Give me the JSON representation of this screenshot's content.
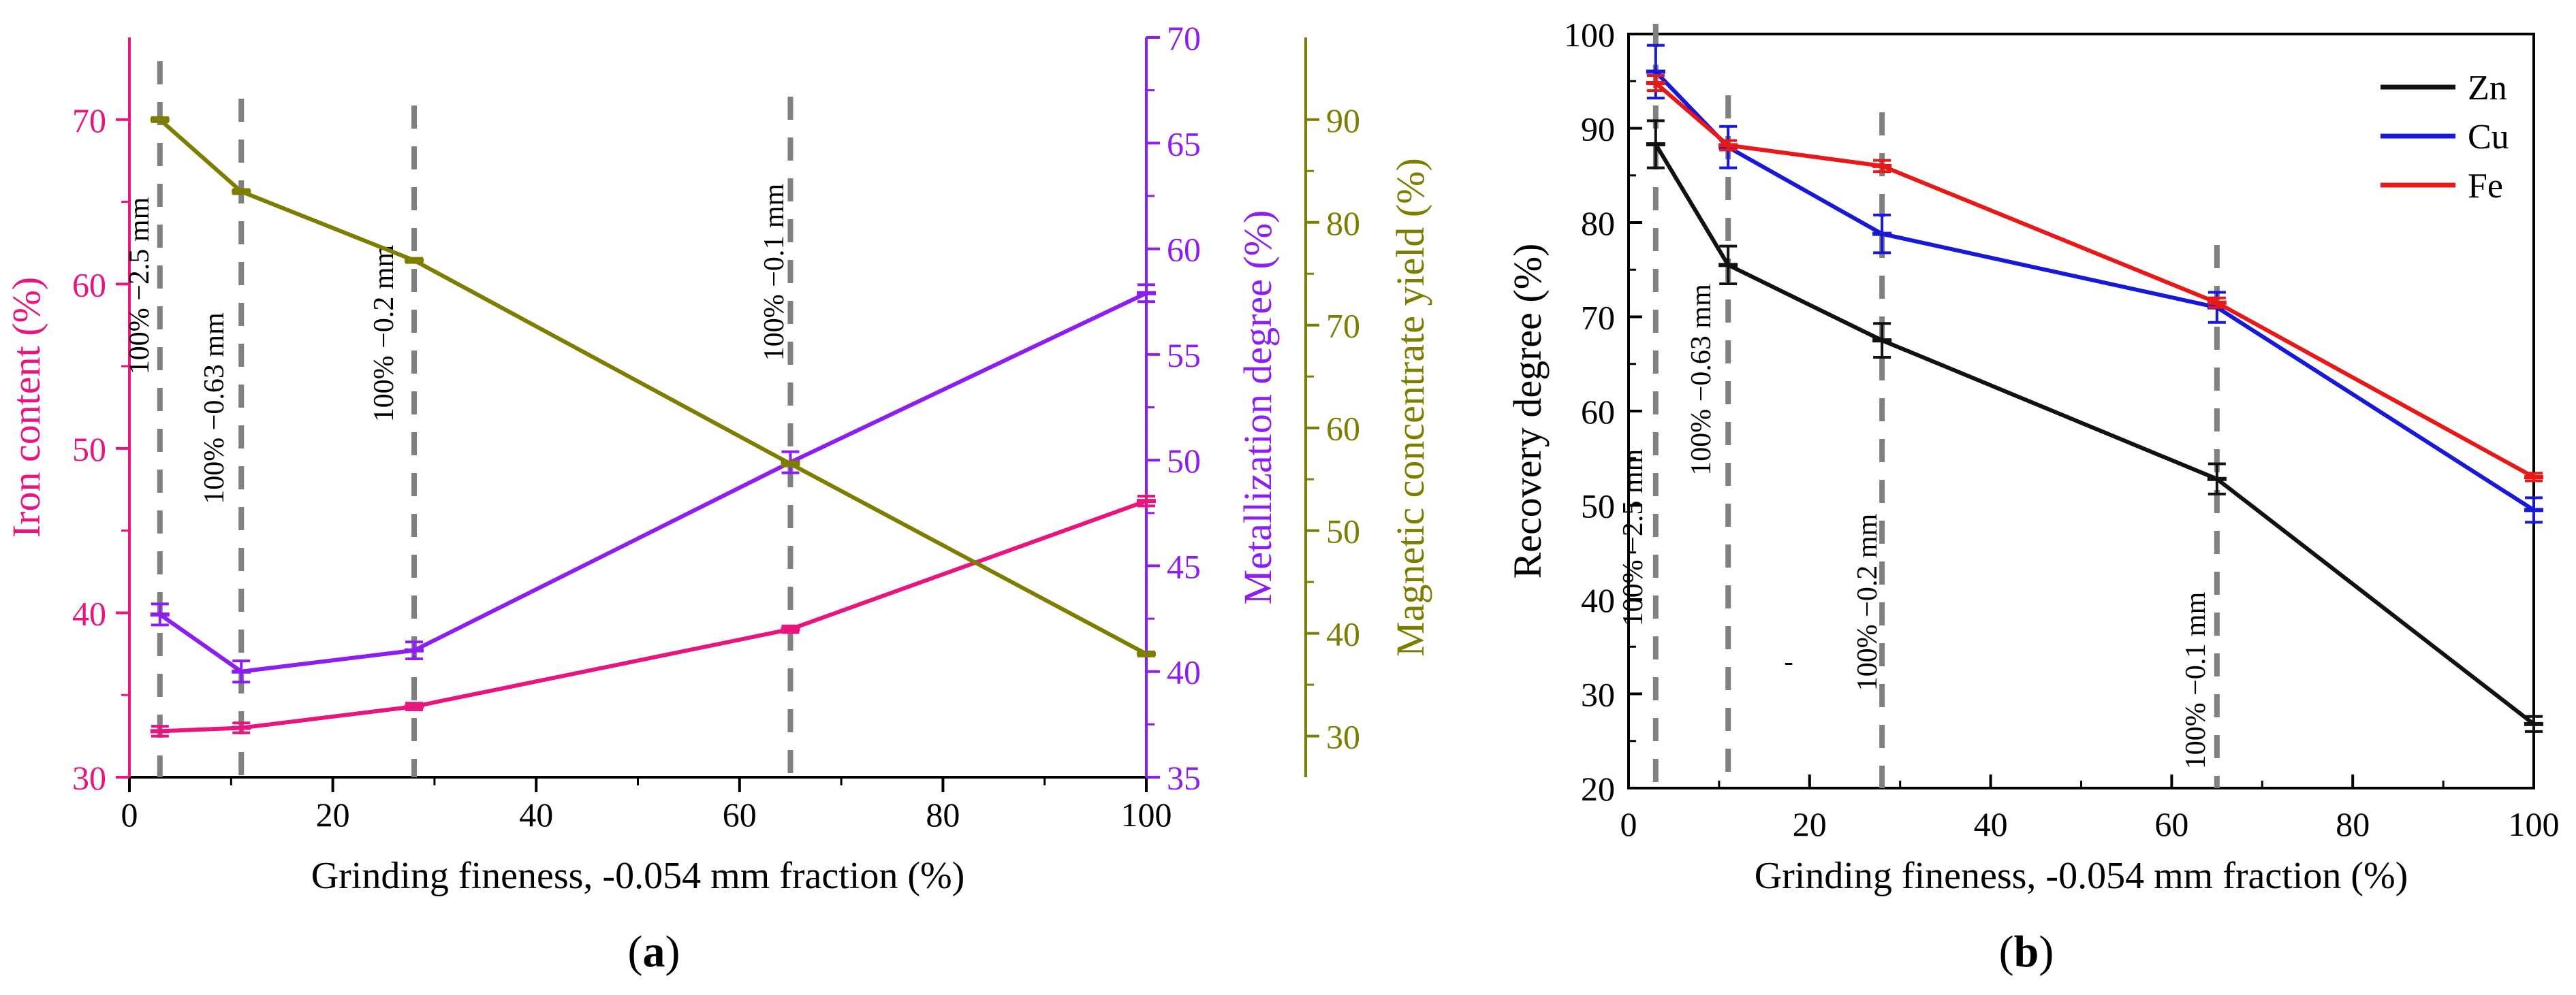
{
  "chart_data": [
    {
      "panel_label": "(a)",
      "type": "line",
      "xlabel": "Grinding fineness, -0.054 mm fraction (%)",
      "xlim": [
        0,
        100
      ],
      "xticks": [
        0,
        20,
        40,
        60,
        80,
        100
      ],
      "x": [
        3,
        11,
        28,
        65,
        100
      ],
      "axes": [
        {
          "id": "iron",
          "label": "Iron content (%)",
          "ylim": [
            30,
            75
          ],
          "ticks": [
            30,
            40,
            50,
            60,
            70
          ],
          "color": "#e8157f"
        },
        {
          "id": "metal",
          "label": "Metallization degree (%)",
          "ylim": [
            35,
            70
          ],
          "ticks": [
            35,
            40,
            45,
            50,
            55,
            60,
            65,
            70
          ],
          "color": "#8c1ff0"
        },
        {
          "id": "yield",
          "label": "Magnetic concentrate yield (%)",
          "ylim": [
            26,
            98
          ],
          "ticks": [
            30,
            40,
            50,
            60,
            70,
            80,
            90
          ],
          "color": "#7d7d00"
        }
      ],
      "series": [
        {
          "name": "Iron content",
          "axis": "iron",
          "color": "#e8157f",
          "values": [
            32.8,
            33.0,
            34.3,
            39.0,
            46.8
          ],
          "errors": [
            0.3,
            0.3,
            0.2,
            0.2,
            0.3
          ]
        },
        {
          "name": "Metallization degree",
          "axis": "metal",
          "color": "#8c1ff0",
          "values": [
            42.7,
            40.0,
            41.0,
            49.9,
            57.9
          ],
          "errors": [
            0.5,
            0.5,
            0.4,
            0.5,
            0.4
          ]
        },
        {
          "name": "Magnetic concentrate yield",
          "axis": "yield",
          "color": "#7d7d00",
          "values": [
            90.0,
            83.0,
            76.3,
            56.5,
            38.0
          ],
          "errors": [
            0.2,
            0.2,
            0.2,
            0.2,
            0.2
          ]
        }
      ],
      "vlines": [
        {
          "x": 3,
          "label": "100% −2.5 mm"
        },
        {
          "x": 11,
          "label": "100% −0.63 mm"
        },
        {
          "x": 28,
          "label": "100% −0.2 mm"
        },
        {
          "x": 65,
          "label": "100% −0.1 mm"
        }
      ]
    },
    {
      "panel_label": "(b)",
      "type": "line",
      "xlabel": "Grinding fineness, -0.054 mm fraction (%)",
      "ylabel": "Recovery degree (%)",
      "xlim": [
        0,
        100
      ],
      "ylim": [
        20,
        100
      ],
      "xticks": [
        0,
        20,
        40,
        60,
        80,
        100
      ],
      "yticks": [
        20,
        30,
        40,
        50,
        60,
        70,
        80,
        90,
        100
      ],
      "x": [
        3,
        11,
        28,
        65,
        100
      ],
      "legend_position": "top-right",
      "series": [
        {
          "name": "Zn",
          "color": "#111111",
          "values": [
            88.3,
            75.5,
            67.5,
            52.8,
            26.8
          ],
          "errors": [
            2.5,
            2.0,
            1.8,
            1.6,
            0.8
          ]
        },
        {
          "name": "Cu",
          "color": "#1818d8",
          "values": [
            96.0,
            88.0,
            78.8,
            71.0,
            49.5
          ],
          "errors": [
            2.8,
            2.2,
            2.0,
            1.6,
            1.3
          ]
        },
        {
          "name": "Fe",
          "color": "#e81818",
          "values": [
            94.8,
            88.2,
            86.0,
            71.5,
            53.0
          ],
          "errors": [
            0.8,
            0.5,
            0.6,
            0.5,
            0.4
          ]
        }
      ],
      "vlines": [
        {
          "x": 3,
          "label": "100% −2.5 mm"
        },
        {
          "x": 11,
          "label": "100% −0.63 mm"
        },
        {
          "x": 28,
          "label": "100% −0.2 mm"
        },
        {
          "x": 65,
          "label": "100% −0.1 mm"
        }
      ],
      "stray_mark": "-"
    }
  ]
}
